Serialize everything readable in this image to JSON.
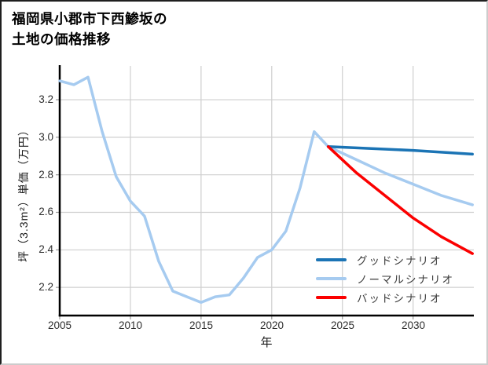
{
  "figure": {
    "title_line1": "福岡県小郡市下西鯵坂の",
    "title_line2": "土地の価格推移"
  },
  "legend": {
    "items": [
      {
        "key": "good",
        "label": "グッドシナリオ",
        "color": "#1b74b5"
      },
      {
        "key": "normal",
        "label": "ノーマルシナリオ",
        "color": "#a6cbf0"
      },
      {
        "key": "bad",
        "label": "バッドシナリオ",
        "color": "#fb0000"
      }
    ]
  },
  "colors": {
    "good": "#1b74b5",
    "normal": "#a6cbf0",
    "bad": "#fb0000",
    "grid": "#cfcfcf",
    "axis": "#000000",
    "tick": "#999999",
    "text": "#2e2e2e"
  },
  "chart_data": {
    "type": "line",
    "title": "福岡県小郡市下西鯵坂の土地の価格推移",
    "xlabel": "年",
    "ylabel": "坪（3.3m²）単価（万円）",
    "xlim": [
      2005,
      2034.3
    ],
    "ylim": [
      2.05,
      3.38
    ],
    "xticks": [
      2005,
      2010,
      2015,
      2020,
      2025,
      2030
    ],
    "yticks": [
      3.2,
      3.0,
      2.8,
      2.6,
      2.4,
      2.2
    ],
    "x_tick_labels": [
      "2005",
      "2010",
      "2015",
      "2020",
      "2025",
      "2030"
    ],
    "y_tick_labels": [
      "3.2",
      "3.0",
      "2.8",
      "2.6",
      "2.4",
      "2.2"
    ],
    "grid": true,
    "legend_position": "lower-right",
    "series": [
      {
        "key": "history",
        "name": "",
        "color": "#a6cbf0",
        "x": [
          2005,
          2006,
          2007,
          2008,
          2009,
          2010,
          2011,
          2012,
          2013,
          2014,
          2015,
          2016,
          2017,
          2018,
          2019,
          2020,
          2021,
          2022,
          2023,
          2024
        ],
        "y": [
          3.3,
          3.28,
          3.32,
          3.03,
          2.79,
          2.66,
          2.58,
          2.34,
          2.18,
          2.15,
          2.12,
          2.15,
          2.16,
          2.25,
          2.36,
          2.4,
          2.5,
          2.73,
          3.03,
          2.95
        ]
      },
      {
        "key": "normal",
        "name": "ノーマルシナリオ",
        "color": "#a6cbf0",
        "x": [
          2024,
          2026,
          2028,
          2030,
          2032,
          2034.2
        ],
        "y": [
          2.95,
          2.88,
          2.81,
          2.75,
          2.69,
          2.64
        ]
      },
      {
        "key": "good",
        "name": "グッドシナリオ",
        "color": "#1b74b5",
        "x": [
          2024,
          2030,
          2034.2
        ],
        "y": [
          2.95,
          2.93,
          2.91
        ]
      },
      {
        "key": "bad",
        "name": "バッドシナリオ",
        "color": "#fb0000",
        "x": [
          2024,
          2026,
          2028,
          2030,
          2032,
          2034.2
        ],
        "y": [
          2.95,
          2.81,
          2.69,
          2.57,
          2.47,
          2.38
        ]
      }
    ]
  }
}
